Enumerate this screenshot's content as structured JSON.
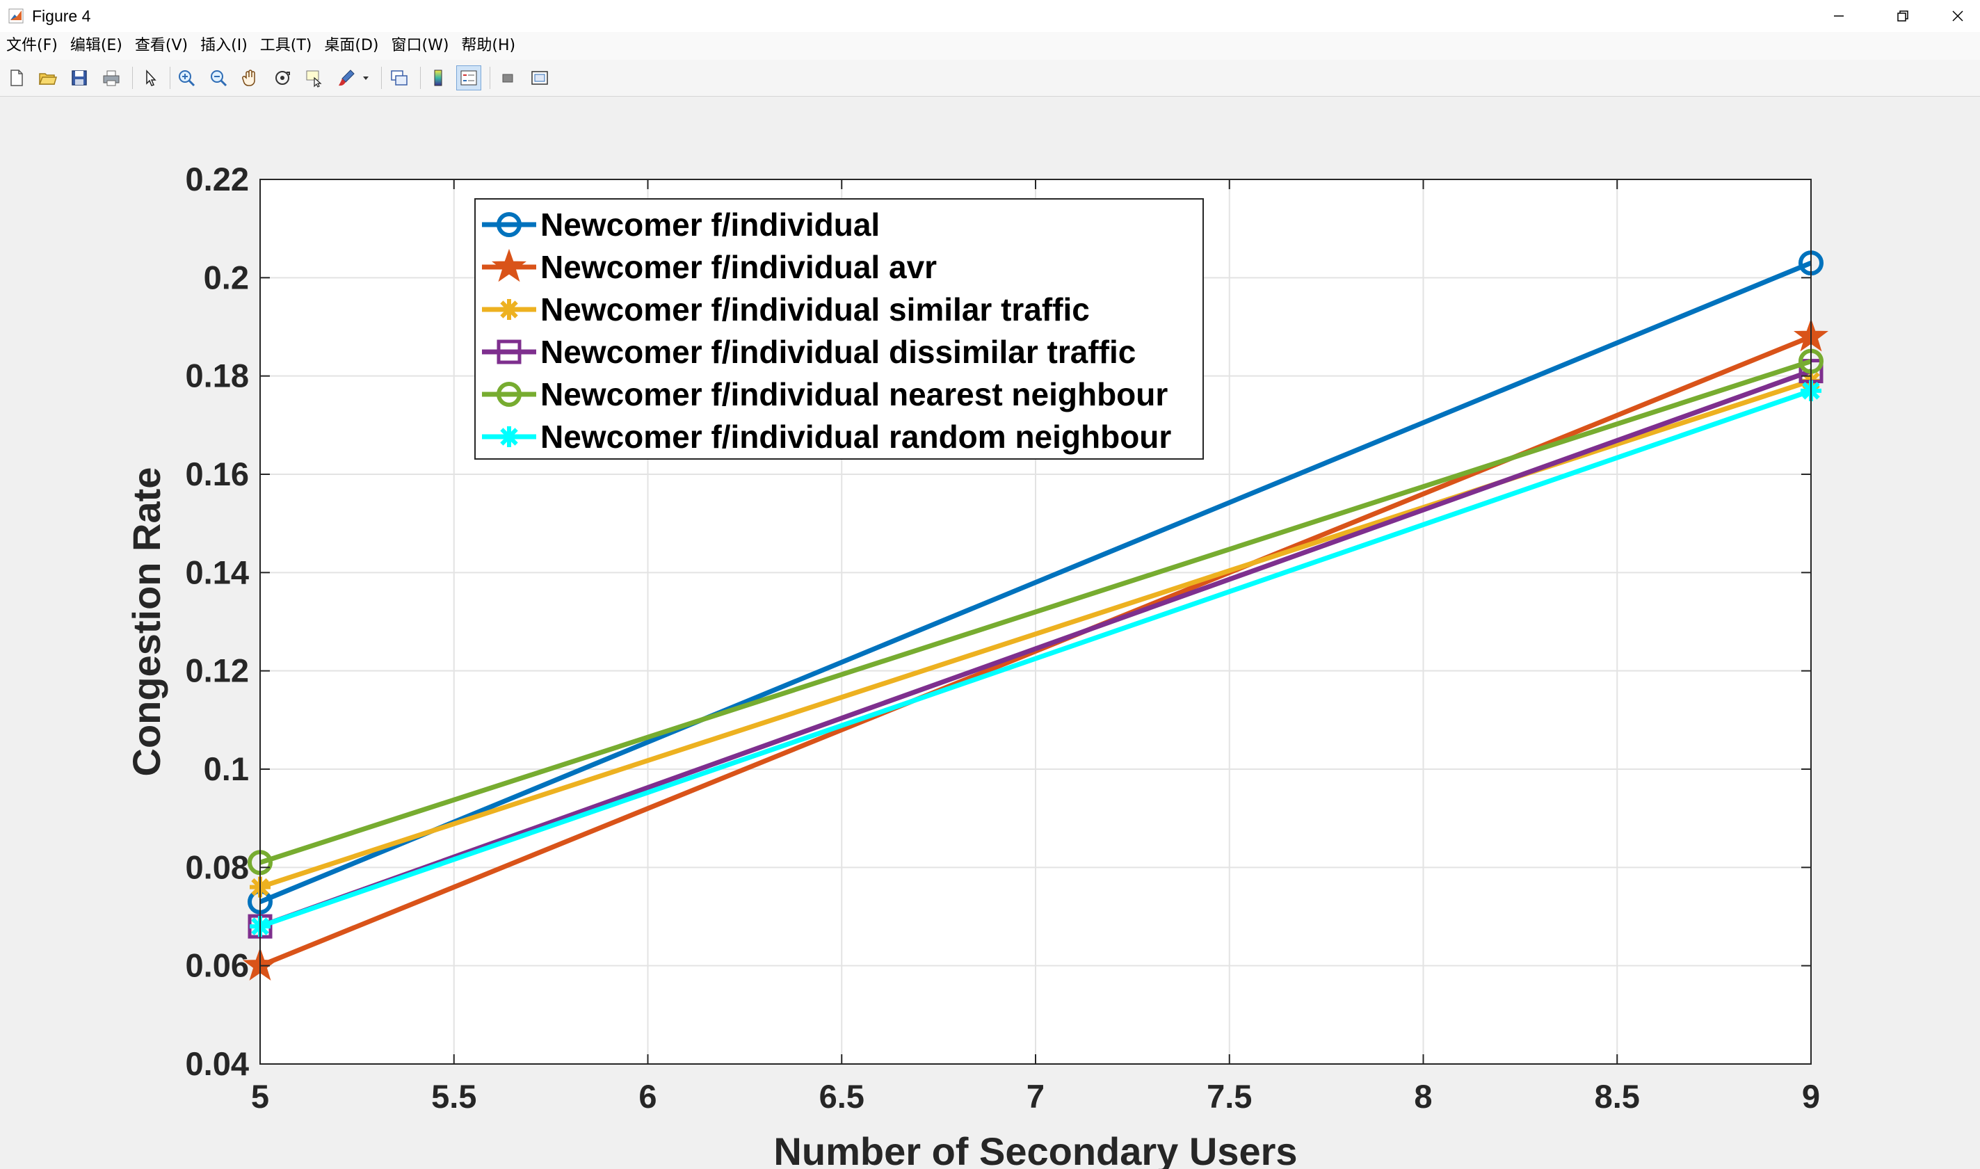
{
  "window": {
    "title": "Figure 4",
    "minimize_glyph": "—",
    "restore_glyph": "❐",
    "close_glyph": "✕"
  },
  "menu": [
    "文件(F)",
    "编辑(E)",
    "查看(V)",
    "插入(I)",
    "工具(T)",
    "桌面(D)",
    "窗口(W)",
    "帮助(H)"
  ],
  "toolbar": {
    "tools": [
      "new-figure-icon",
      "open-file-icon",
      "save-icon",
      "print-icon",
      "pointer-icon",
      "zoom-in-icon",
      "zoom-out-icon",
      "pan-hand-icon",
      "rotate-3d-icon",
      "data-cursor-icon",
      "brush-icon",
      "brush-dropdown-icon",
      "link-plot-icon",
      "colorbar-icon",
      "legend-icon",
      "hide-plot-tools-icon",
      "show-plot-tools-icon"
    ]
  },
  "chart_data": {
    "type": "line",
    "title": "",
    "xlabel": "Number of Secondary Users",
    "ylabel": "Congestion Rate",
    "xlim": [
      5,
      9
    ],
    "ylim": [
      0.04,
      0.22
    ],
    "x_ticks": [
      "5",
      "5.5",
      "6",
      "6.5",
      "7",
      "7.5",
      "8",
      "8.5",
      "9"
    ],
    "y_ticks": [
      "0.04",
      "0.06",
      "0.08",
      "0.1",
      "0.12",
      "0.14",
      "0.16",
      "0.18",
      "0.2",
      "0.22"
    ],
    "grid": true,
    "legend_position": "top-left",
    "x": [
      5,
      9
    ],
    "series": [
      {
        "name": "Newcomer f/individual",
        "values": [
          0.073,
          0.203
        ],
        "color": "#0072BD",
        "marker": "circle"
      },
      {
        "name": "Newcomer f/individual avr",
        "values": [
          0.06,
          0.188
        ],
        "color": "#D95319",
        "marker": "star"
      },
      {
        "name": "Newcomer f/individual similar traffic",
        "values": [
          0.076,
          0.179
        ],
        "color": "#EDB120",
        "marker": "asterisk"
      },
      {
        "name": "Newcomer f/individual dissimilar traffic",
        "values": [
          0.068,
          0.181
        ],
        "color": "#7E2F8E",
        "marker": "square"
      },
      {
        "name": "Newcomer f/individual nearest neighbour",
        "values": [
          0.081,
          0.183
        ],
        "color": "#77AC30",
        "marker": "circle"
      },
      {
        "name": "Newcomer f/individual random neighbour",
        "values": [
          0.068,
          0.177
        ],
        "color": "#00FFFF",
        "marker": "asterisk"
      }
    ]
  }
}
